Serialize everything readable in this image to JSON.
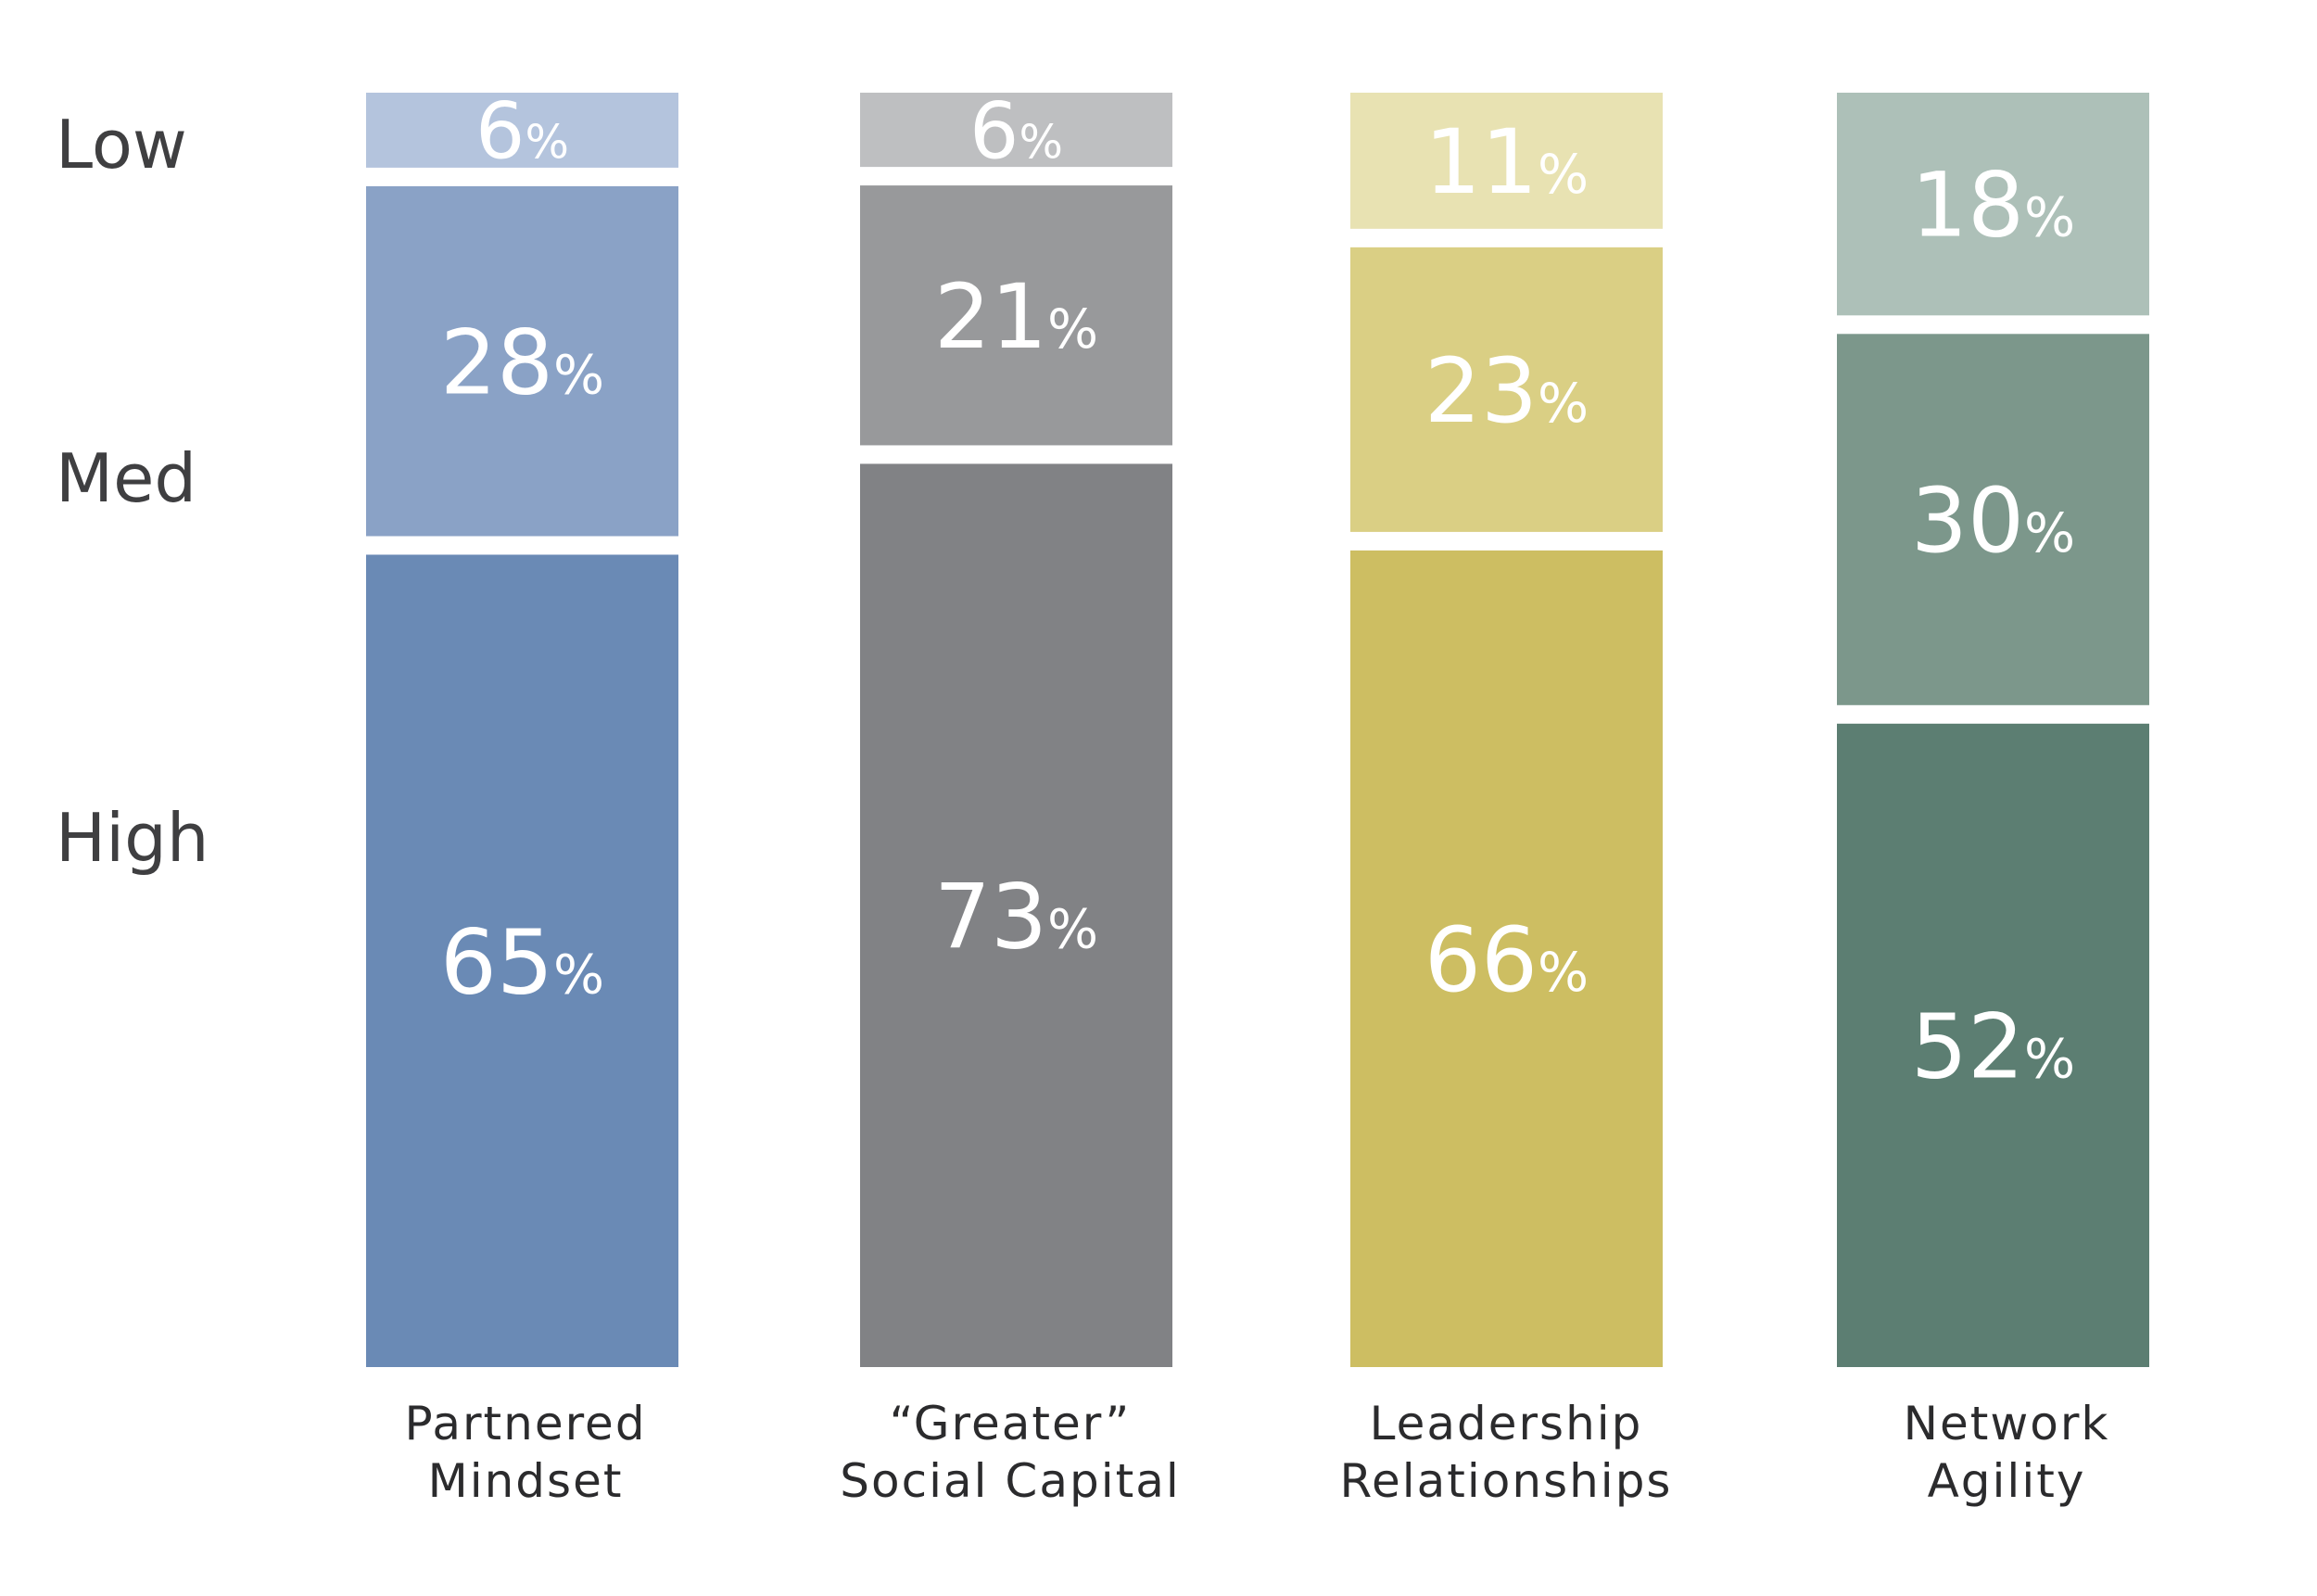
{
  "chart_data": {
    "type": "bar",
    "stacked": true,
    "orientation": "vertical",
    "categories": [
      [
        "Partnered",
        "Mindset"
      ],
      [
        "“Greater”",
        "Social Capital"
      ],
      [
        "Leadership",
        "Relationships"
      ],
      [
        "Network",
        "Agility"
      ]
    ],
    "levels": [
      "Low",
      "Med",
      "High"
    ],
    "unit": "%",
    "series": [
      {
        "name": "High",
        "values": [
          65,
          73,
          66,
          52
        ]
      },
      {
        "name": "Med",
        "values": [
          28,
          21,
          23,
          30
        ]
      },
      {
        "name": "Low",
        "values": [
          6,
          6,
          11,
          18
        ]
      }
    ],
    "colors": [
      {
        "Low": "#b4c4dd",
        "Med": "#8aa2c6",
        "High": "#6a8ab5"
      },
      {
        "Low": "#bebfc1",
        "Med": "#98999b",
        "High": "#818285"
      },
      {
        "Low": "#e8e2b2",
        "Med": "#dacf84",
        "High": "#cdbe62"
      },
      {
        "Low": "#adc0b8",
        "Med": "#7c978b",
        "High": "#5c7e72"
      }
    ],
    "label_color": "#ffffff",
    "ylim": [
      0,
      100
    ],
    "title": "",
    "xlabel": "",
    "ylabel": ""
  },
  "row_labels": {
    "low": "Low",
    "med": "Med",
    "high": "High"
  }
}
